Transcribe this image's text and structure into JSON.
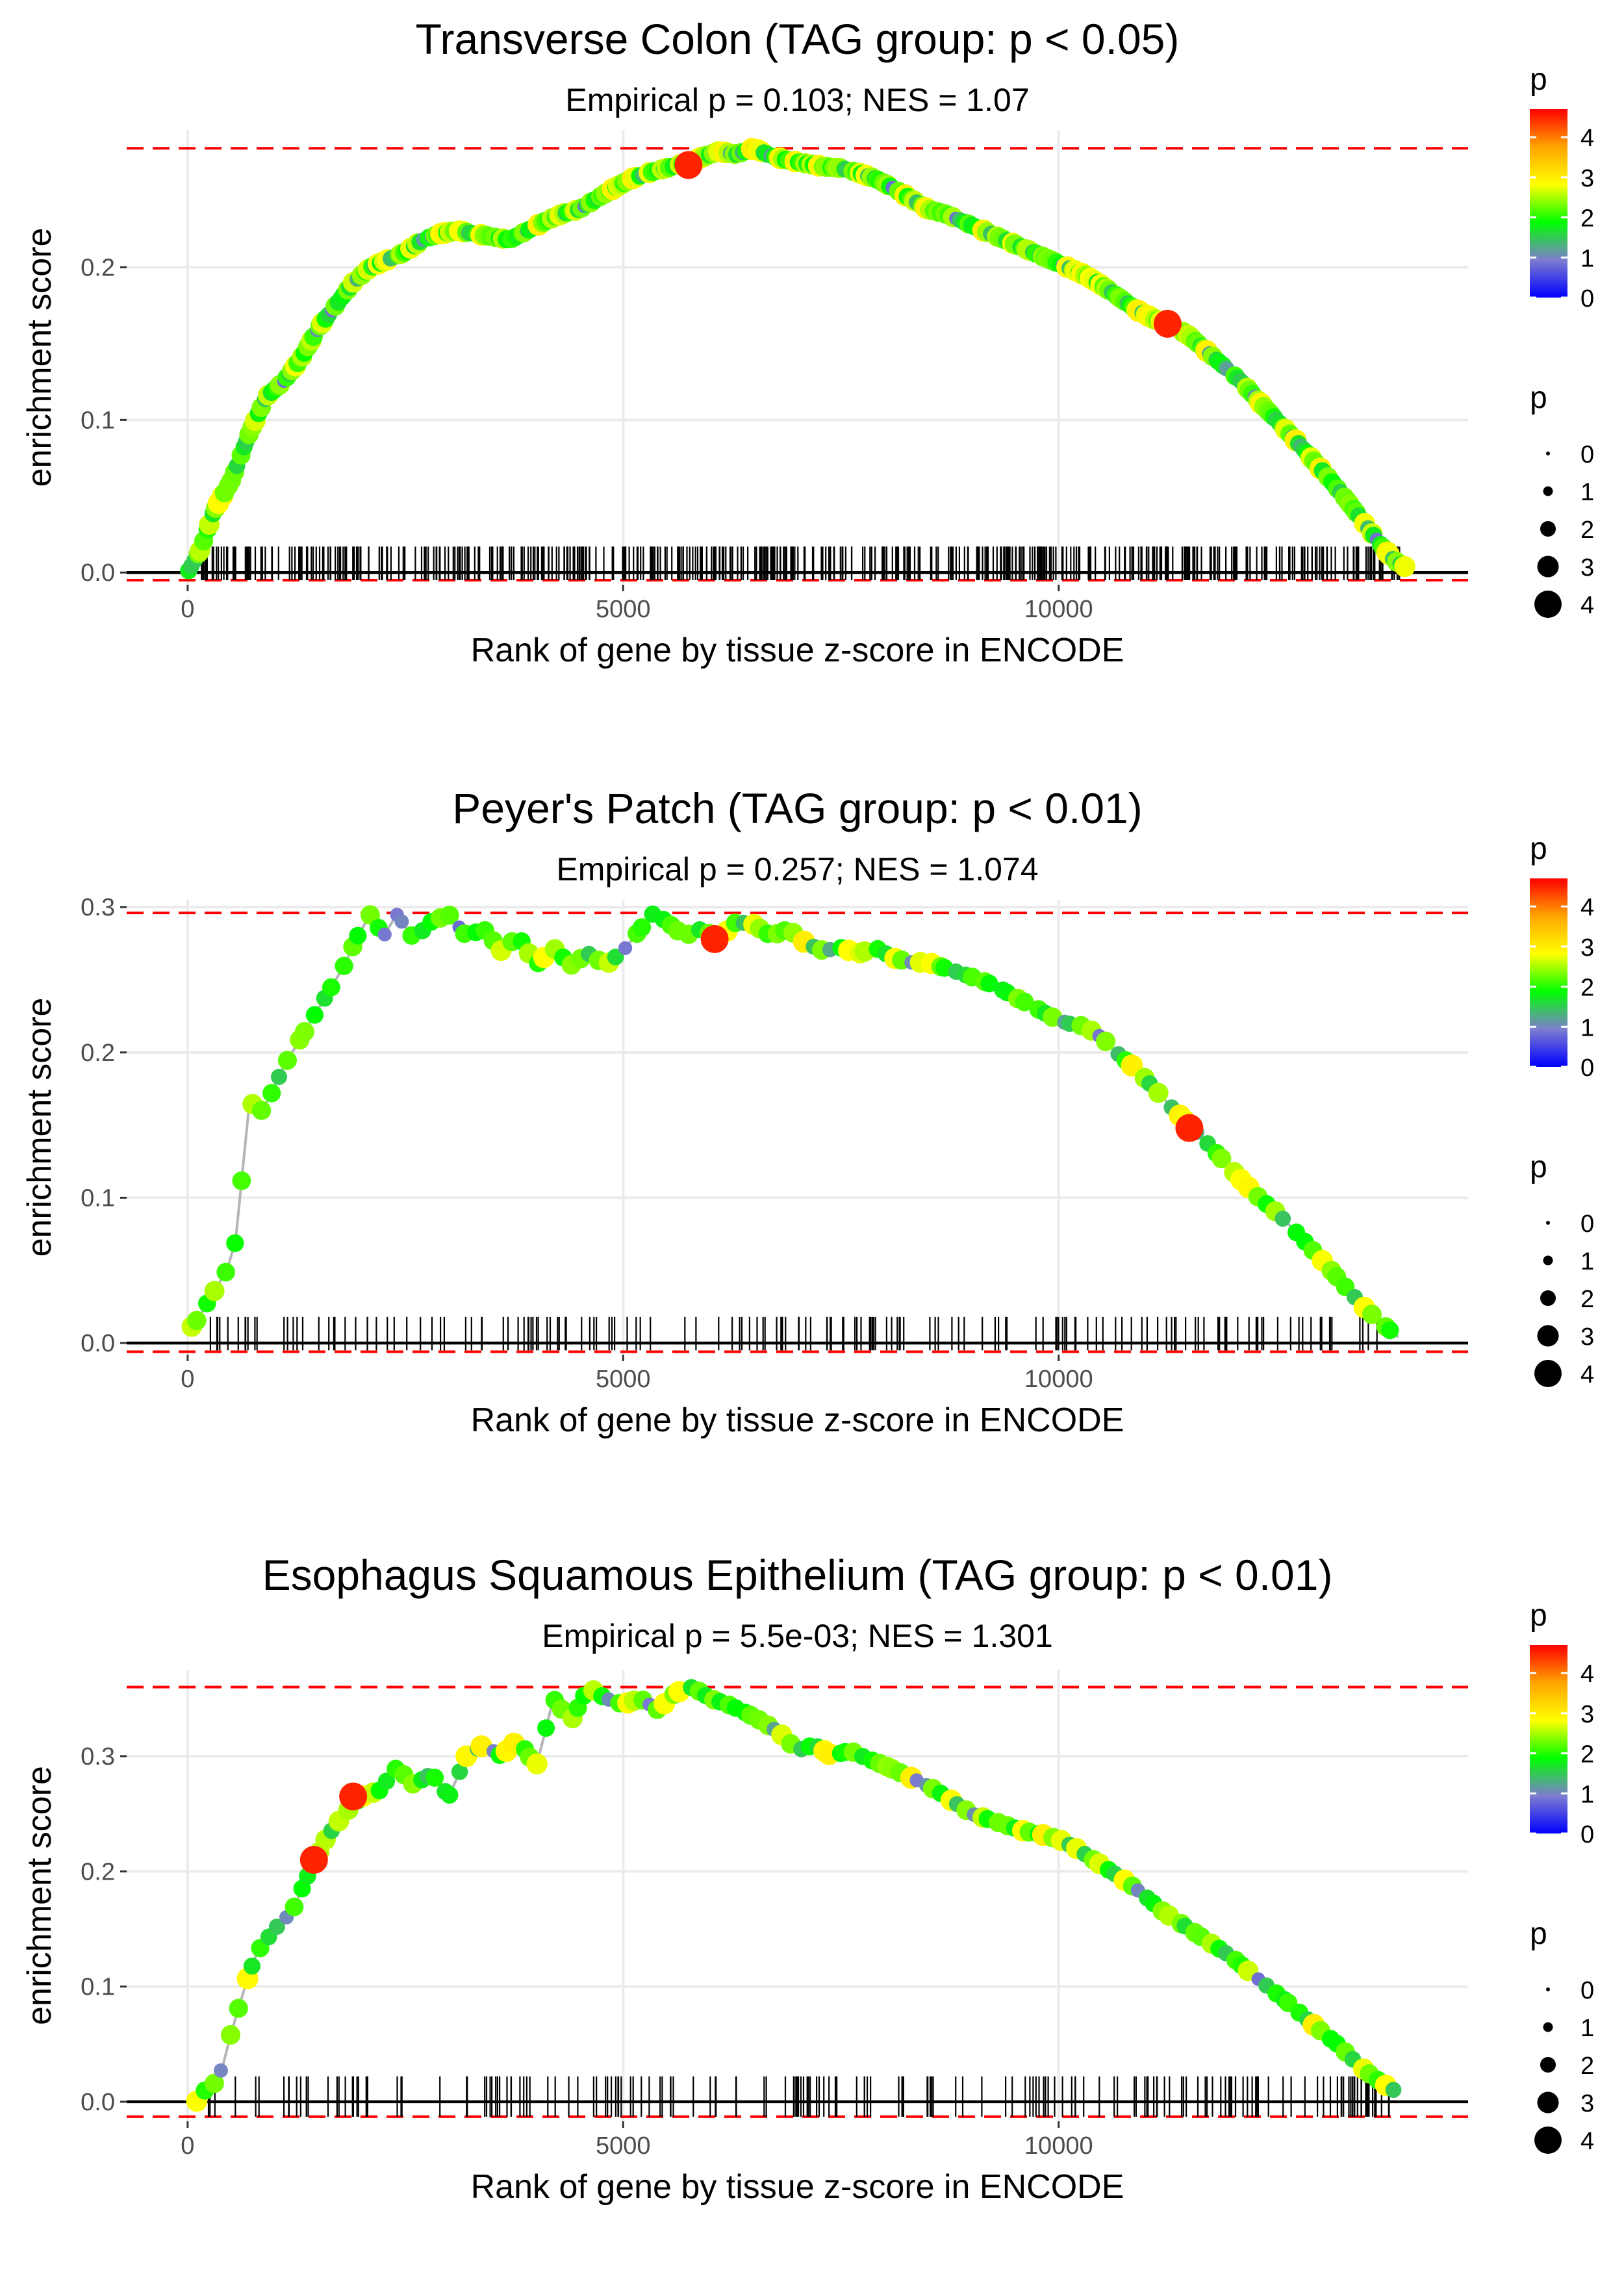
{
  "figure": {
    "colors": {
      "curve_line": "#b5b5b5",
      "max_line": "#ff0000",
      "zero_line": "#000000",
      "ticks": "#000000",
      "grid": "#ebebeb",
      "axis_text": "#4d4d4d",
      "text": "#000000"
    }
  },
  "chart_data": [
    {
      "type": "line",
      "title": "Transverse Colon (TAG group: p < 0.05)",
      "subtitle": "Empirical p = 0.103; NES = 1.07",
      "xlabel": "Rank of gene by tissue z-score in ENCODE",
      "ylabel": "enrichment score",
      "xlim": [
        -700,
        14700
      ],
      "ylim": [
        -0.008,
        0.29
      ],
      "xticks": [
        0,
        5000,
        10000
      ],
      "xtick_labels": [
        "0",
        "5000",
        "10000"
      ],
      "yticks": [
        0,
        0.1,
        0.2
      ],
      "ytick_labels": [
        "0.0",
        "0.1",
        "0.2"
      ],
      "max_es": 0.278,
      "min_es": -0.005,
      "tick_band": [
        -0.005,
        0.017
      ],
      "tick_density": 500,
      "curve": {
        "x": [
          0,
          150,
          300,
          500,
          700,
          900,
          1100,
          1300,
          1500,
          1700,
          1900,
          2100,
          2300,
          2500,
          2700,
          2900,
          3100,
          3300,
          3500,
          3700,
          3900,
          4100,
          4300,
          4500,
          4700,
          4900,
          5100,
          5300,
          5500,
          5700,
          5900,
          6100,
          6300,
          6500,
          6700,
          6900,
          7100,
          7300,
          7500,
          7700,
          7900,
          8100,
          8300,
          8500,
          8700,
          8900,
          9100,
          9300,
          9500,
          9700,
          9900,
          10100,
          10300,
          10500,
          10700,
          10900,
          11100,
          11300,
          11500,
          11700,
          11900,
          12100,
          12300,
          12500,
          12700,
          12900,
          13100,
          13300,
          13500,
          13700,
          13850,
          14000
        ],
        "y": [
          0.0,
          0.015,
          0.04,
          0.06,
          0.09,
          0.115,
          0.125,
          0.14,
          0.16,
          0.175,
          0.19,
          0.2,
          0.205,
          0.21,
          0.218,
          0.222,
          0.224,
          0.222,
          0.22,
          0.218,
          0.224,
          0.23,
          0.235,
          0.238,
          0.245,
          0.252,
          0.258,
          0.262,
          0.265,
          0.268,
          0.272,
          0.276,
          0.274,
          0.278,
          0.273,
          0.27,
          0.268,
          0.266,
          0.265,
          0.262,
          0.258,
          0.252,
          0.245,
          0.238,
          0.235,
          0.23,
          0.225,
          0.22,
          0.215,
          0.21,
          0.205,
          0.2,
          0.195,
          0.188,
          0.18,
          0.172,
          0.166,
          0.162,
          0.155,
          0.145,
          0.135,
          0.125,
          0.112,
          0.1,
          0.088,
          0.075,
          0.062,
          0.048,
          0.033,
          0.018,
          0.008,
          0.003
        ]
      },
      "highlights": [
        {
          "x": 5750,
          "y": 0.267,
          "p": 4.5
        },
        {
          "x": 11250,
          "y": 0.163,
          "p": 4.5
        }
      ]
    },
    {
      "type": "line",
      "title": "Peyer's Patch (TAG group: p < 0.01)",
      "subtitle": "Empirical p = 0.257; NES = 1.074",
      "xlabel": "Rank of gene by tissue z-score in ENCODE",
      "ylabel": "enrichment score",
      "xlim": [
        -700,
        14700
      ],
      "ylim": [
        -0.008,
        0.305
      ],
      "xticks": [
        0,
        5000,
        10000
      ],
      "xtick_labels": [
        "0",
        "5000",
        "10000"
      ],
      "yticks": [
        0,
        0.1,
        0.2,
        0.3
      ],
      "ytick_labels": [
        "0.0",
        "0.1",
        "0.2",
        "0.3"
      ],
      "max_es": 0.296,
      "min_es": -0.006,
      "tick_band": [
        -0.005,
        0.018
      ],
      "tick_density": 170,
      "curve": {
        "x": [
          0,
          100,
          200,
          300,
          450,
          550,
          650,
          700,
          750,
          850,
          950,
          1100,
          1300,
          1400,
          1600,
          1800,
          1950,
          2100,
          2250,
          2400,
          2600,
          2800,
          3000,
          3200,
          3400,
          3600,
          3800,
          4000,
          4200,
          4400,
          4600,
          4800,
          5000,
          5200,
          5350,
          5500,
          5700,
          5900,
          6100,
          6300,
          6500,
          6700,
          6900,
          7100,
          7300,
          7500,
          7700,
          7900,
          8100,
          8300,
          8500,
          8700,
          8900,
          9100,
          9300,
          9500,
          9700,
          9900,
          10100,
          10300,
          10500,
          10700,
          10900,
          11100,
          11300,
          11500,
          11700,
          11900,
          12100,
          12300,
          12500,
          12700,
          12900,
          13100,
          13300,
          13500,
          13700,
          13900
        ],
        "y": [
          0.008,
          0.015,
          0.025,
          0.035,
          0.05,
          0.07,
          0.13,
          0.16,
          0.165,
          0.16,
          0.17,
          0.19,
          0.21,
          0.22,
          0.24,
          0.26,
          0.28,
          0.295,
          0.28,
          0.295,
          0.278,
          0.29,
          0.295,
          0.28,
          0.285,
          0.27,
          0.28,
          0.26,
          0.272,
          0.26,
          0.268,
          0.26,
          0.27,
          0.285,
          0.296,
          0.29,
          0.28,
          0.285,
          0.278,
          0.29,
          0.288,
          0.28,
          0.285,
          0.275,
          0.27,
          0.272,
          0.268,
          0.272,
          0.265,
          0.262,
          0.262,
          0.258,
          0.254,
          0.25,
          0.245,
          0.238,
          0.232,
          0.225,
          0.22,
          0.218,
          0.21,
          0.198,
          0.188,
          0.175,
          0.162,
          0.15,
          0.138,
          0.125,
          0.112,
          0.1,
          0.09,
          0.078,
          0.065,
          0.052,
          0.038,
          0.025,
          0.014,
          0.004
        ]
      },
      "highlights": [
        {
          "x": 6050,
          "y": 0.278,
          "p": 4.5
        },
        {
          "x": 11500,
          "y": 0.148,
          "p": 4.5
        }
      ]
    },
    {
      "type": "line",
      "title": "Esophagus Squamous Epithelium (TAG group: p < 0.01)",
      "subtitle": "Empirical p = 5.5e-03; NES = 1.301",
      "xlabel": "Rank of gene by tissue z-score in ENCODE",
      "ylabel": "enrichment score",
      "xlim": [
        -700,
        14700
      ],
      "ylim": [
        -0.017,
        0.375
      ],
      "xticks": [
        0,
        5000,
        10000
      ],
      "xtick_labels": [
        "0",
        "5000",
        "10000"
      ],
      "yticks": [
        0,
        0.1,
        0.2,
        0.3
      ],
      "ytick_labels": [
        "0.0",
        "0.1",
        "0.2",
        "0.3"
      ],
      "max_es": 0.36,
      "min_es": -0.013,
      "tick_band": [
        -0.013,
        0.022
      ],
      "tick_density": 190,
      "curve": {
        "x": [
          100,
          200,
          300,
          400,
          500,
          600,
          700,
          800,
          900,
          1000,
          1200,
          1400,
          1600,
          1800,
          2000,
          2200,
          2400,
          2600,
          2800,
          3000,
          3200,
          3400,
          3600,
          3800,
          4000,
          4200,
          4400,
          4600,
          4800,
          5000,
          5200,
          5400,
          5600,
          5800,
          6000,
          6200,
          6400,
          6600,
          6800,
          7000,
          7200,
          7400,
          7600,
          7800,
          8000,
          8200,
          8400,
          8600,
          8800,
          9000,
          9200,
          9400,
          9600,
          9800,
          10000,
          10200,
          10400,
          10600,
          10800,
          11000,
          11200,
          11400,
          11600,
          11800,
          12000,
          12200,
          12400,
          12600,
          12800,
          13000,
          13200,
          13400,
          13600,
          13800,
          13900
        ],
        "y": [
          0.0,
          0.01,
          0.015,
          0.03,
          0.06,
          0.085,
          0.11,
          0.13,
          0.14,
          0.15,
          0.165,
          0.2,
          0.23,
          0.25,
          0.265,
          0.27,
          0.29,
          0.275,
          0.285,
          0.265,
          0.3,
          0.31,
          0.3,
          0.315,
          0.29,
          0.35,
          0.33,
          0.36,
          0.35,
          0.345,
          0.35,
          0.34,
          0.355,
          0.36,
          0.35,
          0.345,
          0.338,
          0.33,
          0.32,
          0.305,
          0.31,
          0.3,
          0.305,
          0.298,
          0.292,
          0.285,
          0.278,
          0.27,
          0.26,
          0.25,
          0.245,
          0.24,
          0.235,
          0.232,
          0.228,
          0.22,
          0.21,
          0.2,
          0.19,
          0.178,
          0.165,
          0.155,
          0.145,
          0.135,
          0.125,
          0.112,
          0.1,
          0.088,
          0.075,
          0.062,
          0.05,
          0.035,
          0.022,
          0.012,
          0.008
        ]
      },
      "highlights": [
        {
          "x": 1450,
          "y": 0.21,
          "p": 4.5
        },
        {
          "x": 1900,
          "y": 0.265,
          "p": 4.5
        }
      ]
    }
  ],
  "legends": [
    {
      "color_title": "p",
      "color_tick_labels": [
        "4",
        "3",
        "2",
        "1",
        "0"
      ],
      "color_tick_values": [
        4,
        3,
        2,
        1,
        0
      ],
      "color_range": [
        0,
        4.7
      ],
      "color_stops": [
        "#0000ff",
        "#7d7dcf",
        "#00ff00",
        "#ffff00",
        "#ffa500",
        "#ff0000"
      ],
      "size_title": "p",
      "size_labels": [
        "0",
        "1",
        "2",
        "3",
        "4"
      ],
      "size_values": [
        0,
        1,
        2,
        3,
        4
      ]
    },
    {
      "color_title": "p",
      "color_tick_labels": [
        "4",
        "3",
        "2",
        "1",
        "0"
      ],
      "color_tick_values": [
        4,
        3,
        2,
        1,
        0
      ],
      "color_range": [
        0,
        4.7
      ],
      "color_stops": [
        "#0000ff",
        "#7d7dcf",
        "#00ff00",
        "#ffff00",
        "#ffa500",
        "#ff0000"
      ],
      "size_title": "p",
      "size_labels": [
        "0",
        "1",
        "2",
        "3",
        "4"
      ],
      "size_values": [
        0,
        1,
        2,
        3,
        4
      ]
    },
    {
      "color_title": "p",
      "color_tick_labels": [
        "4",
        "3",
        "2",
        "1",
        "0"
      ],
      "color_tick_values": [
        4,
        3,
        2,
        1,
        0
      ],
      "color_range": [
        0,
        4.7
      ],
      "color_stops": [
        "#0000ff",
        "#7d7dcf",
        "#00ff00",
        "#ffff00",
        "#ffa500",
        "#ff0000"
      ],
      "size_title": "p",
      "size_labels": [
        "0",
        "1",
        "2",
        "3",
        "4"
      ],
      "size_values": [
        0,
        1,
        2,
        3,
        4
      ]
    }
  ]
}
